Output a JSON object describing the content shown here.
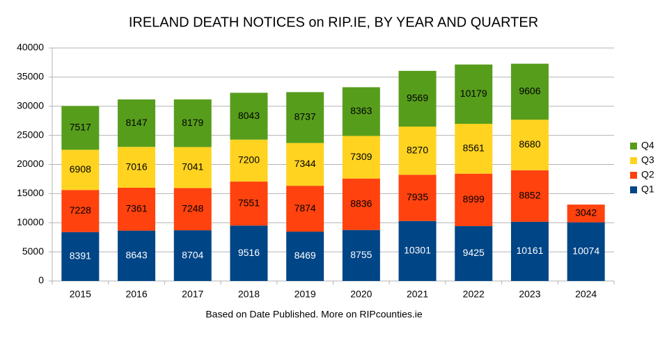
{
  "chart_data": {
    "type": "bar",
    "stacked": true,
    "title": "IRELAND DEATH NOTICES on RIP.IE, BY YEAR AND QUARTER",
    "caption": "Based on Date Published. More on RIPcounties.ie",
    "categories": [
      "2015",
      "2016",
      "2017",
      "2018",
      "2019",
      "2020",
      "2021",
      "2022",
      "2023",
      "2024"
    ],
    "series": [
      {
        "name": "Q1",
        "color": "#004586",
        "label_color": "#ffffff",
        "values": [
          8391,
          8643,
          8704,
          9516,
          8469,
          8755,
          10301,
          9425,
          10161,
          10074
        ]
      },
      {
        "name": "Q2",
        "color": "#ff420e",
        "label_color": "#000000",
        "values": [
          7228,
          7361,
          7248,
          7551,
          7874,
          8836,
          7935,
          8999,
          8852,
          3042
        ]
      },
      {
        "name": "Q3",
        "color": "#ffd320",
        "label_color": "#000000",
        "values": [
          6908,
          7016,
          7041,
          7200,
          7344,
          7309,
          8270,
          8561,
          8680,
          null
        ]
      },
      {
        "name": "Q4",
        "color": "#579d1c",
        "label_color": "#000000",
        "values": [
          7517,
          8147,
          8179,
          8043,
          8737,
          8363,
          9569,
          10179,
          9606,
          null
        ]
      }
    ],
    "ylim": [
      0,
      40000
    ],
    "yticks": [
      0,
      5000,
      10000,
      15000,
      20000,
      25000,
      30000,
      35000,
      40000
    ],
    "grid": true,
    "legend": "right"
  }
}
